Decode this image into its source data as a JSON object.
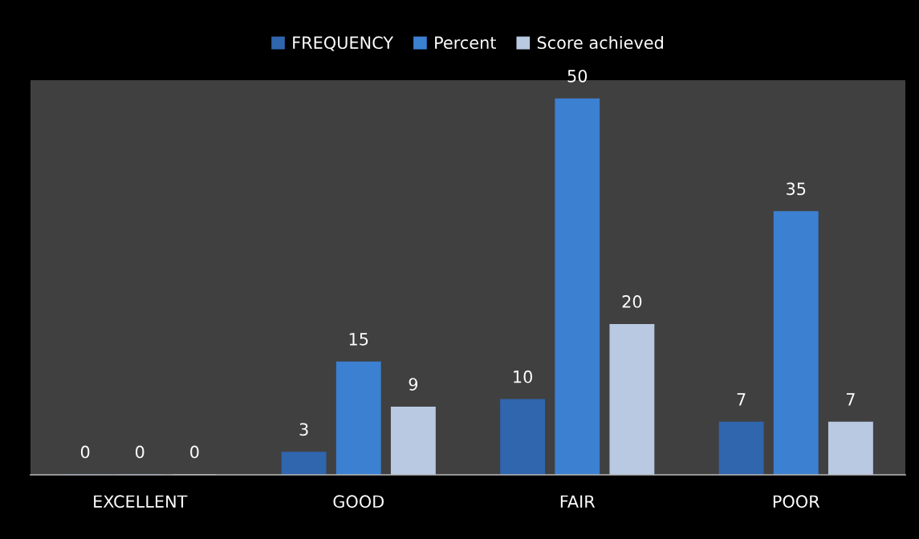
{
  "chart_data": {
    "type": "bar",
    "categories": [
      "EXCELLENT",
      "GOOD",
      "FAIR",
      "POOR"
    ],
    "series": [
      {
        "name": "FREQUENCY",
        "color": "#2f66ad",
        "values": [
          0,
          3,
          10,
          7
        ]
      },
      {
        "name": "Percent",
        "color": "#3c80d2",
        "values": [
          0,
          15,
          50,
          35
        ]
      },
      {
        "name": "Score achieved",
        "color": "#b9c9e2",
        "values": [
          0,
          9,
          20,
          7
        ]
      }
    ],
    "data_labels": true,
    "legend": "top",
    "grid": false
  }
}
